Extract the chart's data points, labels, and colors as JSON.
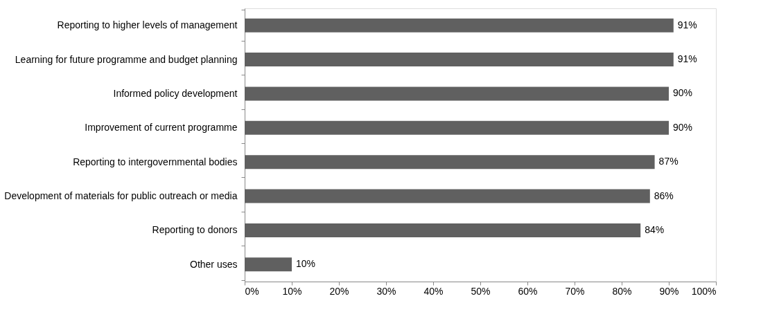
{
  "chart_data": {
    "type": "bar",
    "orientation": "horizontal",
    "categories": [
      "Reporting to higher levels of management",
      "Learning for future programme and budget planning",
      "Informed policy development",
      "Improvement of current programme",
      "Reporting to intergovernmental bodies",
      "Development of materials for public outreach or media",
      "Reporting to donors",
      "Other uses"
    ],
    "values": [
      91,
      91,
      90,
      90,
      87,
      86,
      84,
      10
    ],
    "color": "#606060",
    "value_labels": [
      "91%",
      "91%",
      "90%",
      "90%",
      "87%",
      "86%",
      "84%",
      "10%"
    ],
    "xlim": [
      0,
      100
    ],
    "xticks": [
      {
        "value": 0,
        "label": "0%"
      },
      {
        "value": 10,
        "label": "10%"
      },
      {
        "value": 20,
        "label": "20%"
      },
      {
        "value": 30,
        "label": "30%"
      },
      {
        "value": 40,
        "label": "40%"
      },
      {
        "value": 50,
        "label": "50%"
      },
      {
        "value": 60,
        "label": "60%"
      },
      {
        "value": 70,
        "label": "70%"
      },
      {
        "value": 80,
        "label": "80%"
      },
      {
        "value": 90,
        "label": "90%"
      },
      {
        "value": 100,
        "label": "100%"
      }
    ],
    "grid": false
  }
}
